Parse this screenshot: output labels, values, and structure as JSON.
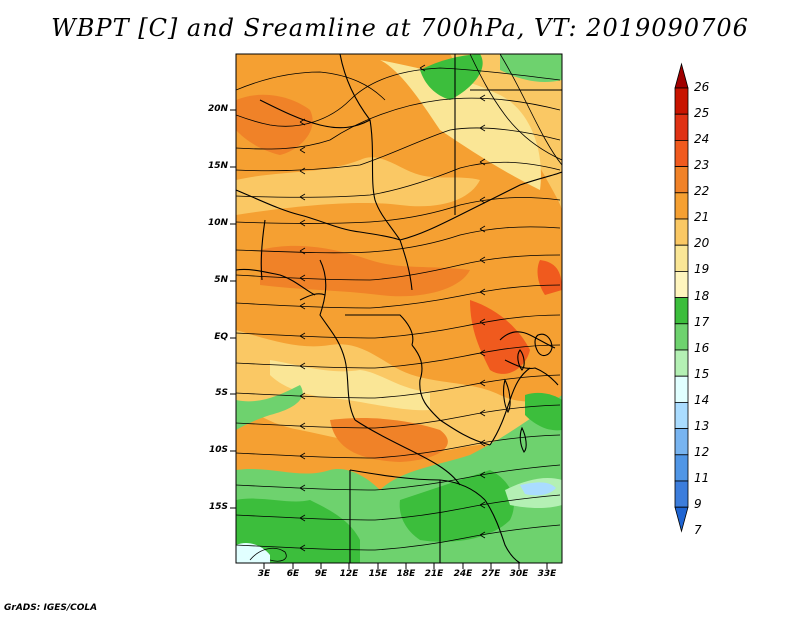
{
  "title": "WBPT [C] and Sreamline at 700hPa, VT: 2019090706",
  "footer": "GrADS: IGES/COLA",
  "map": {
    "variable": "WBPT",
    "units": "C",
    "level": "700hPa",
    "valid_time": "2019090706",
    "lat_labels": [
      "20N",
      "15N",
      "10N",
      "5N",
      "EQ",
      "5S",
      "10S",
      "15S"
    ],
    "lon_labels": [
      "3E",
      "6E",
      "9E",
      "12E",
      "15E",
      "18E",
      "21E",
      "24E",
      "27E",
      "30E",
      "33E"
    ]
  },
  "colorbar": {
    "levels": [
      "26",
      "25",
      "24",
      "23",
      "22",
      "21",
      "20",
      "19",
      "18",
      "17",
      "16",
      "15",
      "14",
      "13",
      "12",
      "11",
      "9",
      "7"
    ],
    "colors": [
      "#a00000",
      "#c81400",
      "#e03214",
      "#f05a1e",
      "#f08228",
      "#f5a032",
      "#fac864",
      "#fae696",
      "#fff5be",
      "#3cbe3c",
      "#6ed26e",
      "#b4f0b4",
      "#e1ffff",
      "#aadcff",
      "#78b4f0",
      "#5096e6",
      "#3c7ddc",
      "#1e64d2"
    ]
  }
}
